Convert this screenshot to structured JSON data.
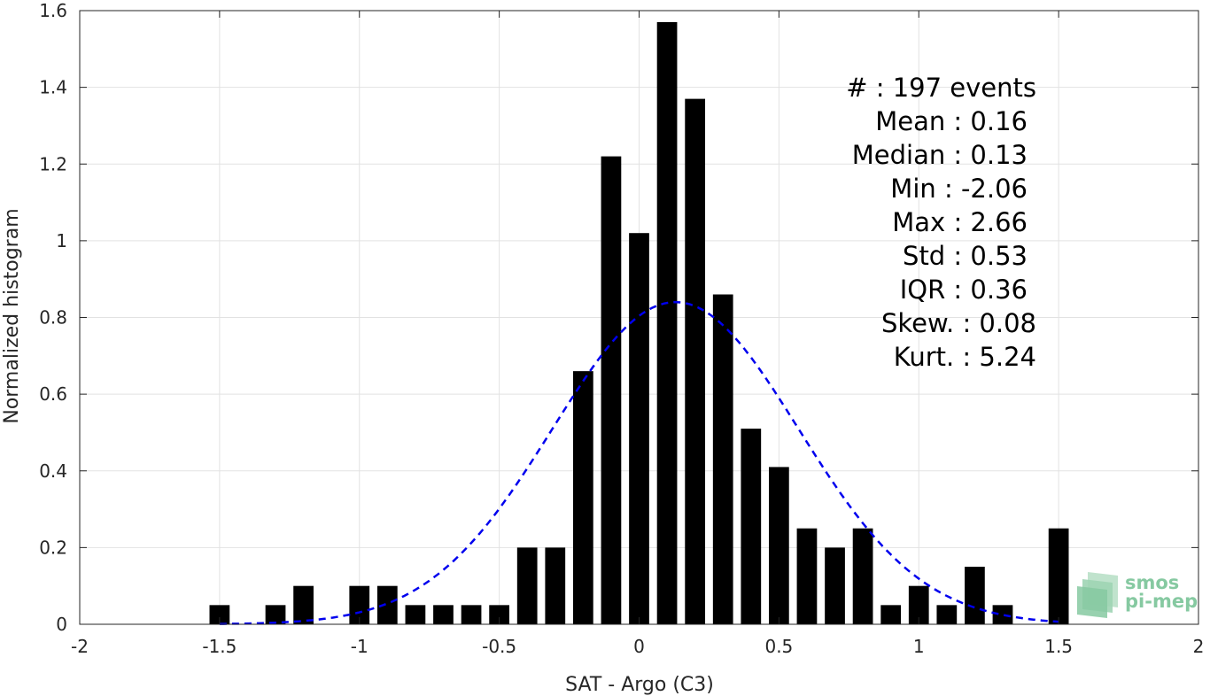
{
  "chart_data": {
    "type": "bar",
    "xlabel": "SAT - Argo (C3)",
    "ylabel": "Normalized histogram",
    "xlim": [
      -2,
      2
    ],
    "ylim": [
      0,
      1.6
    ],
    "grid": true,
    "xticks": [
      -2,
      -1.5,
      -1,
      -0.5,
      0,
      0.5,
      1,
      1.5,
      2
    ],
    "xtick_labels": [
      "-2",
      "-1.5",
      "-1",
      "-0.5",
      "0",
      "0.5",
      "1",
      "1.5",
      "2"
    ],
    "yticks": [
      0,
      0.2,
      0.4,
      0.6,
      0.8,
      1,
      1.2,
      1.4,
      1.6
    ],
    "ytick_labels": [
      "0",
      "0.2",
      "0.4",
      "0.6",
      "0.8",
      "1",
      "1.2",
      "1.4",
      "1.6"
    ],
    "bin_width": 0.1,
    "bins": [
      {
        "x": -1.5,
        "y": 0.05
      },
      {
        "x": -1.3,
        "y": 0.05
      },
      {
        "x": -1.2,
        "y": 0.1
      },
      {
        "x": -1.0,
        "y": 0.1
      },
      {
        "x": -0.9,
        "y": 0.1
      },
      {
        "x": -0.8,
        "y": 0.05
      },
      {
        "x": -0.7,
        "y": 0.05
      },
      {
        "x": -0.6,
        "y": 0.05
      },
      {
        "x": -0.5,
        "y": 0.05
      },
      {
        "x": -0.4,
        "y": 0.2
      },
      {
        "x": -0.3,
        "y": 0.2
      },
      {
        "x": -0.2,
        "y": 0.66
      },
      {
        "x": -0.1,
        "y": 1.22
      },
      {
        "x": 0.0,
        "y": 1.02
      },
      {
        "x": 0.1,
        "y": 1.57
      },
      {
        "x": 0.2,
        "y": 1.37
      },
      {
        "x": 0.3,
        "y": 0.86
      },
      {
        "x": 0.4,
        "y": 0.51
      },
      {
        "x": 0.5,
        "y": 0.41
      },
      {
        "x": 0.6,
        "y": 0.25
      },
      {
        "x": 0.7,
        "y": 0.2
      },
      {
        "x": 0.8,
        "y": 0.25
      },
      {
        "x": 0.9,
        "y": 0.05
      },
      {
        "x": 1.0,
        "y": 0.1
      },
      {
        "x": 1.1,
        "y": 0.05
      },
      {
        "x": 1.2,
        "y": 0.15
      },
      {
        "x": 1.3,
        "y": 0.05
      },
      {
        "x": 1.5,
        "y": 0.25
      }
    ],
    "fit_curve": {
      "type": "gaussian",
      "style": "dashed",
      "color": "#0000ee",
      "mean": 0.13,
      "peak": 0.84,
      "sigma": 0.44,
      "x_range": [
        -1.5,
        1.5
      ]
    },
    "bar_color": "#000000"
  },
  "stats": [
    {
      "label": "#  : 197 events"
    },
    {
      "label": "Mean : 0.16"
    },
    {
      "label": "Median : 0.13"
    },
    {
      "label": "Min : -2.06"
    },
    {
      "label": "Max : 2.66"
    },
    {
      "label": "Std : 0.53"
    },
    {
      "label": "IQR : 0.36"
    },
    {
      "label": "Skew. : 0.08"
    },
    {
      "label": "Kurt. : 5.24"
    }
  ],
  "logo": {
    "line1": "smos",
    "line2": "pi-mep"
  }
}
